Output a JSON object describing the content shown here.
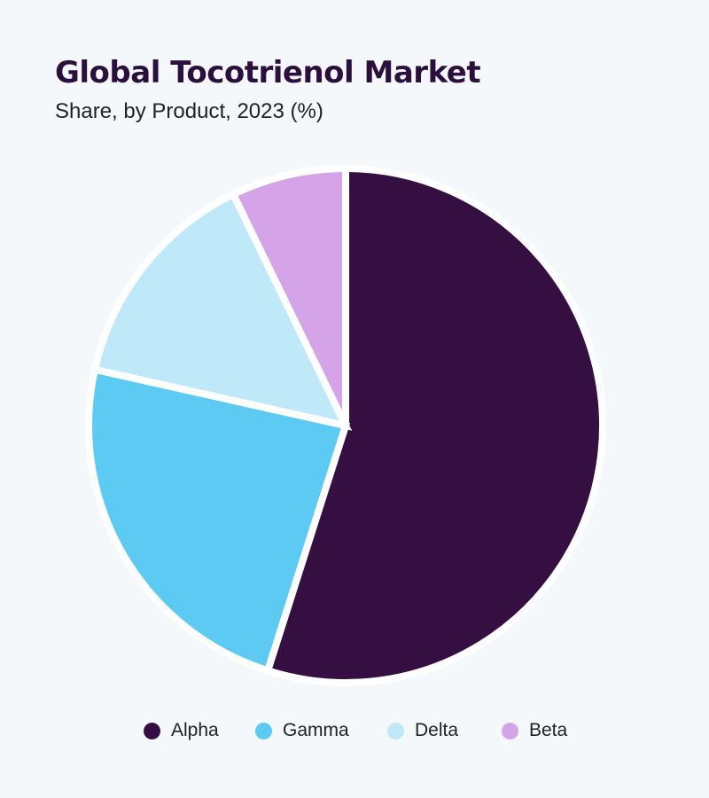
{
  "chart_data": {
    "type": "pie",
    "title": "Global Tocotrienol Market",
    "subtitle": "Share, by Product, 2023 (%)",
    "slices": [
      {
        "label": "Alpha",
        "value": 54.9,
        "color": "#350e42"
      },
      {
        "label": "Gamma",
        "value": 23.6,
        "color": "#5ccaf3"
      },
      {
        "label": "Delta",
        "value": 14.3,
        "color": "#bfe8f8"
      },
      {
        "label": "Beta",
        "value": 7.2,
        "color": "#d4a3e8"
      }
    ],
    "legend_position": "bottom"
  }
}
